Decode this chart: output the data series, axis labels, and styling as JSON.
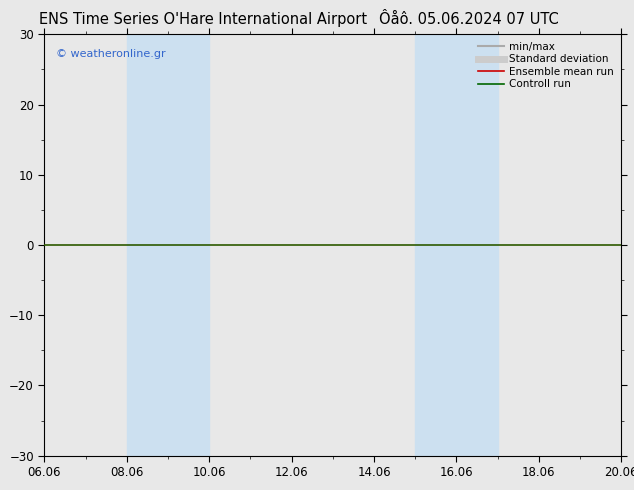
{
  "title_left": "ENS Time Series O'Hare International Airport",
  "title_right": "Ôåô. 05.06.2024 07 UTC",
  "watermark": "© weatheronline.gr",
  "ylim": [
    -30,
    30
  ],
  "yticks": [
    -30,
    -20,
    -10,
    0,
    10,
    20,
    30
  ],
  "xtick_labels": [
    "06.06",
    "08.06",
    "10.06",
    "12.06",
    "14.06",
    "16.06",
    "18.06",
    "20.06"
  ],
  "xtick_positions": [
    0,
    2,
    4,
    6,
    8,
    10,
    12,
    14
  ],
  "xlim": [
    0,
    14
  ],
  "blue_bands": [
    [
      2.0,
      3.0
    ],
    [
      3.0,
      4.0
    ],
    [
      9.0,
      10.0
    ],
    [
      10.0,
      11.0
    ]
  ],
  "band_color": "#cce0f0",
  "zero_line_color": "#2d5a00",
  "zero_line_y": 0,
  "legend_entries": [
    {
      "label": "min/max",
      "color": "#aaaaaa",
      "lw": 1.5,
      "ls": "-"
    },
    {
      "label": "Standard deviation",
      "color": "#cccccc",
      "lw": 5,
      "ls": "-"
    },
    {
      "label": "Ensemble mean run",
      "color": "#cc0000",
      "lw": 1.2,
      "ls": "-"
    },
    {
      "label": "Controll run",
      "color": "#006600",
      "lw": 1.2,
      "ls": "-"
    }
  ],
  "bg_color": "#e8e8e8",
  "plot_bg_color": "#e8e8e8",
  "watermark_color": "#3366cc",
  "title_fontsize": 10.5,
  "tick_fontsize": 8.5
}
